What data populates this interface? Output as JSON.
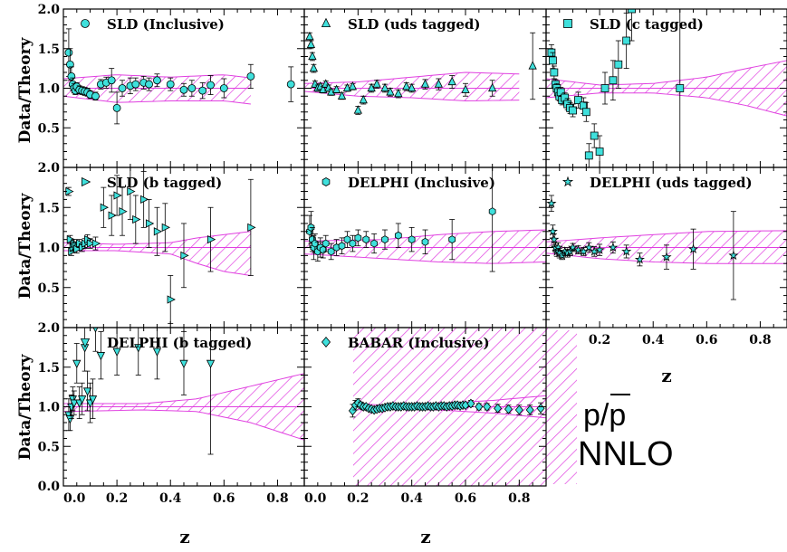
{
  "figure": {
    "ylabel": "Data/Theory",
    "xlabel": "z",
    "legend_lines": [
      "p/p",
      "NNLO"
    ],
    "legend_overbar_on": "p",
    "colors": {
      "marker_fill": "#3fe0dc",
      "band": "#e040e0",
      "axis": "#000000"
    },
    "x_ticks": [
      "0.0",
      "0.2",
      "0.4",
      "0.6",
      "0.8"
    ],
    "y_ticks": [
      "0.0",
      "0.5",
      "1.0",
      "1.5",
      "2.0"
    ]
  },
  "chart_data": [
    {
      "type": "scatter",
      "title": "SLD (Inclusive)",
      "marker": "circle",
      "xlim": [
        0,
        0.9
      ],
      "ylim": [
        0,
        2
      ],
      "band_xmax": 0.7,
      "band_lower": [
        [
          0.0,
          0.9
        ],
        [
          0.2,
          0.82
        ],
        [
          0.4,
          0.84
        ],
        [
          0.6,
          0.84
        ],
        [
          0.7,
          0.8
        ]
      ],
      "band_upper": [
        [
          0.0,
          1.12
        ],
        [
          0.2,
          1.17
        ],
        [
          0.4,
          1.14
        ],
        [
          0.6,
          1.17
        ],
        [
          0.7,
          1.13
        ]
      ],
      "x": [
        0.02,
        0.025,
        0.03,
        0.035,
        0.04,
        0.045,
        0.05,
        0.06,
        0.07,
        0.08,
        0.09,
        0.1,
        0.12,
        0.14,
        0.16,
        0.18,
        0.2,
        0.22,
        0.25,
        0.27,
        0.3,
        0.32,
        0.35,
        0.4,
        0.45,
        0.48,
        0.52,
        0.55,
        0.6,
        0.7,
        0.85
      ],
      "y": [
        1.45,
        1.3,
        1.15,
        1.05,
        1.0,
        0.97,
        1.02,
        0.98,
        0.97,
        0.96,
        0.95,
        0.92,
        0.9,
        1.05,
        1.07,
        1.1,
        0.75,
        1.0,
        1.03,
        1.05,
        1.07,
        1.05,
        1.1,
        1.05,
        0.98,
        1.0,
        0.97,
        1.04,
        1.0,
        1.15,
        1.05
      ],
      "err": [
        0.3,
        0.2,
        0.12,
        0.08,
        0.06,
        0.05,
        0.05,
        0.05,
        0.05,
        0.05,
        0.05,
        0.05,
        0.05,
        0.06,
        0.07,
        0.15,
        0.2,
        0.1,
        0.1,
        0.08,
        0.08,
        0.08,
        0.08,
        0.08,
        0.08,
        0.1,
        0.1,
        0.12,
        0.12,
        0.15,
        0.22
      ]
    },
    {
      "type": "scatter",
      "title": "SLD (uds tagged)",
      "marker": "triangle",
      "xlim": [
        0,
        0.9
      ],
      "ylim": [
        0,
        2
      ],
      "band_xmax": 0.8,
      "band_lower": [
        [
          0.0,
          0.96
        ],
        [
          0.2,
          0.9
        ],
        [
          0.4,
          0.88
        ],
        [
          0.6,
          0.84
        ],
        [
          0.8,
          0.85
        ]
      ],
      "band_upper": [
        [
          0.0,
          1.06
        ],
        [
          0.2,
          1.08
        ],
        [
          0.4,
          1.14
        ],
        [
          0.6,
          1.2
        ],
        [
          0.8,
          1.18
        ]
      ],
      "x": [
        0.02,
        0.025,
        0.03,
        0.035,
        0.04,
        0.05,
        0.06,
        0.07,
        0.08,
        0.09,
        0.1,
        0.12,
        0.14,
        0.16,
        0.18,
        0.2,
        0.22,
        0.25,
        0.27,
        0.3,
        0.32,
        0.35,
        0.38,
        0.4,
        0.45,
        0.5,
        0.55,
        0.6,
        0.7,
        0.85
      ],
      "y": [
        1.65,
        1.55,
        1.4,
        1.25,
        1.05,
        1.0,
        1.02,
        0.98,
        1.05,
        1.0,
        0.95,
        0.98,
        0.9,
        1.0,
        1.02,
        0.72,
        0.85,
        1.0,
        1.05,
        1.0,
        0.95,
        0.93,
        1.02,
        1.0,
        1.05,
        1.05,
        1.08,
        0.98,
        1.0,
        1.28
      ],
      "err": [
        0.05,
        0.05,
        0.05,
        0.05,
        0.04,
        0.04,
        0.04,
        0.04,
        0.04,
        0.04,
        0.04,
        0.04,
        0.04,
        0.04,
        0.04,
        0.05,
        0.05,
        0.05,
        0.05,
        0.05,
        0.05,
        0.05,
        0.05,
        0.05,
        0.06,
        0.07,
        0.08,
        0.08,
        0.1,
        0.42
      ]
    },
    {
      "type": "scatter",
      "title": "SLD (c tagged)",
      "marker": "square",
      "xlim": [
        0,
        0.9
      ],
      "ylim": [
        0,
        2
      ],
      "band_xmax": 0.9,
      "band_lower": [
        [
          0.0,
          0.88
        ],
        [
          0.2,
          0.94
        ],
        [
          0.4,
          0.94
        ],
        [
          0.6,
          0.88
        ],
        [
          0.75,
          0.78
        ],
        [
          0.9,
          0.65
        ]
      ],
      "band_upper": [
        [
          0.0,
          1.12
        ],
        [
          0.2,
          1.04
        ],
        [
          0.4,
          1.06
        ],
        [
          0.6,
          1.14
        ],
        [
          0.75,
          1.25
        ],
        [
          0.9,
          1.35
        ]
      ],
      "x": [
        0.02,
        0.025,
        0.03,
        0.035,
        0.04,
        0.045,
        0.05,
        0.055,
        0.06,
        0.07,
        0.08,
        0.09,
        0.1,
        0.12,
        0.14,
        0.15,
        0.16,
        0.18,
        0.2,
        0.22,
        0.25,
        0.27,
        0.3,
        0.32,
        0.5
      ],
      "y": [
        1.45,
        1.35,
        1.2,
        1.05,
        1.0,
        0.95,
        0.9,
        0.95,
        0.85,
        0.88,
        0.8,
        0.75,
        0.72,
        0.85,
        0.78,
        0.7,
        0.15,
        0.4,
        0.2,
        1.0,
        1.1,
        1.3,
        1.6,
        2.0,
        1.0
      ],
      "err": [
        0.1,
        0.1,
        0.08,
        0.06,
        0.06,
        0.06,
        0.06,
        0.06,
        0.06,
        0.06,
        0.07,
        0.07,
        0.08,
        0.1,
        0.1,
        0.12,
        0.15,
        0.15,
        0.2,
        0.2,
        0.25,
        0.3,
        0.35,
        0.4,
        1.0
      ]
    },
    {
      "type": "scatter",
      "title": "SLD (b tagged)",
      "marker": "triangle-right",
      "xlim": [
        0,
        0.9
      ],
      "ylim": [
        0,
        2
      ],
      "band_xmax": 0.7,
      "band_lower": [
        [
          0.0,
          0.96
        ],
        [
          0.2,
          0.96
        ],
        [
          0.4,
          0.92
        ],
        [
          0.5,
          0.8
        ],
        [
          0.6,
          0.7
        ],
        [
          0.7,
          0.65
        ]
      ],
      "band_upper": [
        [
          0.0,
          1.06
        ],
        [
          0.2,
          1.04
        ],
        [
          0.4,
          1.06
        ],
        [
          0.5,
          1.12
        ],
        [
          0.6,
          1.16
        ],
        [
          0.7,
          1.2
        ]
      ],
      "x": [
        0.02,
        0.025,
        0.03,
        0.035,
        0.04,
        0.045,
        0.05,
        0.06,
        0.07,
        0.08,
        0.09,
        0.1,
        0.12,
        0.15,
        0.18,
        0.2,
        0.22,
        0.25,
        0.27,
        0.3,
        0.32,
        0.35,
        0.38,
        0.4,
        0.45,
        0.55,
        0.7
      ],
      "y": [
        1.7,
        1.1,
        0.95,
        1.0,
        1.05,
        1.02,
        0.98,
        1.05,
        1.0,
        1.05,
        1.1,
        1.05,
        1.05,
        1.5,
        1.4,
        1.65,
        1.45,
        1.7,
        1.35,
        1.6,
        1.3,
        1.2,
        1.25,
        0.35,
        0.9,
        1.1,
        1.25
      ],
      "err": [
        0.05,
        0.05,
        0.05,
        0.05,
        0.05,
        0.05,
        0.05,
        0.05,
        0.05,
        0.06,
        0.06,
        0.06,
        0.08,
        0.25,
        0.25,
        0.25,
        0.3,
        0.35,
        0.3,
        0.35,
        0.3,
        0.3,
        0.3,
        0.3,
        0.4,
        0.4,
        0.6
      ]
    },
    {
      "type": "scatter",
      "title": "DELPHI (Inclusive)",
      "marker": "hexagon",
      "xlim": [
        0,
        0.9
      ],
      "ylim": [
        0,
        2
      ],
      "band_xmax": 0.9,
      "band_lower": [
        [
          0.0,
          0.92
        ],
        [
          0.3,
          0.86
        ],
        [
          0.5,
          0.82
        ],
        [
          0.7,
          0.8
        ],
        [
          0.9,
          0.82
        ]
      ],
      "band_upper": [
        [
          0.0,
          1.08
        ],
        [
          0.3,
          1.1
        ],
        [
          0.5,
          1.16
        ],
        [
          0.7,
          1.2
        ],
        [
          0.9,
          1.22
        ]
      ],
      "x": [
        0.02,
        0.025,
        0.03,
        0.035,
        0.04,
        0.05,
        0.06,
        0.07,
        0.08,
        0.1,
        0.12,
        0.14,
        0.16,
        0.18,
        0.2,
        0.23,
        0.26,
        0.3,
        0.35,
        0.4,
        0.45,
        0.55,
        0.7
      ],
      "y": [
        1.2,
        1.25,
        1.1,
        1.0,
        1.05,
        0.95,
        1.0,
        0.97,
        1.05,
        0.95,
        1.0,
        1.02,
        1.1,
        1.05,
        1.12,
        1.1,
        1.05,
        1.1,
        1.15,
        1.1,
        1.07,
        1.1,
        1.45
      ],
      "err": [
        0.2,
        0.2,
        0.15,
        0.15,
        0.12,
        0.12,
        0.12,
        0.1,
        0.1,
        0.1,
        0.1,
        0.1,
        0.1,
        0.1,
        0.1,
        0.1,
        0.12,
        0.12,
        0.15,
        0.15,
        0.15,
        0.25,
        0.75
      ]
    },
    {
      "type": "scatter",
      "title": "DELPHI (uds tagged)",
      "marker": "star",
      "xlim": [
        0,
        0.9
      ],
      "ylim": [
        0,
        2
      ],
      "band_xmax": 0.9,
      "band_lower": [
        [
          0.0,
          0.93
        ],
        [
          0.2,
          0.86
        ],
        [
          0.4,
          0.82
        ],
        [
          0.6,
          0.8
        ],
        [
          0.9,
          0.8
        ]
      ],
      "band_upper": [
        [
          0.0,
          1.07
        ],
        [
          0.2,
          1.12
        ],
        [
          0.4,
          1.16
        ],
        [
          0.6,
          1.2
        ],
        [
          0.9,
          1.21
        ]
      ],
      "x": [
        0.02,
        0.025,
        0.03,
        0.035,
        0.04,
        0.045,
        0.05,
        0.06,
        0.07,
        0.08,
        0.09,
        0.1,
        0.12,
        0.14,
        0.16,
        0.18,
        0.2,
        0.25,
        0.3,
        0.35,
        0.45,
        0.55,
        0.7
      ],
      "y": [
        1.55,
        1.2,
        1.1,
        1.0,
        0.95,
        1.0,
        0.93,
        0.9,
        0.95,
        0.93,
        0.95,
        1.0,
        0.97,
        0.95,
        1.0,
        0.95,
        0.97,
        1.0,
        0.95,
        0.85,
        0.88,
        0.98,
        0.9
      ],
      "err": [
        0.1,
        0.08,
        0.07,
        0.06,
        0.06,
        0.06,
        0.06,
        0.05,
        0.05,
        0.05,
        0.05,
        0.05,
        0.05,
        0.05,
        0.06,
        0.06,
        0.07,
        0.07,
        0.08,
        0.08,
        0.15,
        0.25,
        0.55
      ]
    },
    {
      "type": "scatter",
      "title": "DELPHI (b tagged)",
      "marker": "triangle-down",
      "xlim": [
        0,
        0.9
      ],
      "ylim": [
        0,
        2
      ],
      "band_xmax": 0.9,
      "band_lower": [
        [
          0.0,
          0.94
        ],
        [
          0.3,
          0.96
        ],
        [
          0.5,
          0.94
        ],
        [
          0.7,
          0.8
        ],
        [
          0.9,
          0.58
        ]
      ],
      "band_upper": [
        [
          0.0,
          1.04
        ],
        [
          0.3,
          1.04
        ],
        [
          0.5,
          1.1
        ],
        [
          0.7,
          1.26
        ],
        [
          0.9,
          1.42
        ]
      ],
      "x": [
        0.02,
        0.025,
        0.03,
        0.035,
        0.04,
        0.05,
        0.06,
        0.07,
        0.08,
        0.09,
        0.1,
        0.11,
        0.12,
        0.14,
        0.2,
        0.28,
        0.35,
        0.45,
        0.55
      ],
      "y": [
        0.9,
        0.85,
        1.0,
        1.1,
        1.05,
        1.55,
        1.05,
        1.1,
        1.75,
        1.2,
        1.05,
        1.1,
        2.0,
        1.65,
        1.7,
        1.75,
        1.7,
        1.55,
        1.55
      ],
      "err": [
        0.2,
        0.15,
        0.15,
        0.15,
        0.15,
        0.25,
        0.2,
        0.2,
        0.3,
        0.25,
        0.25,
        0.25,
        0.3,
        0.3,
        0.3,
        0.35,
        0.35,
        0.4,
        1.15
      ]
    },
    {
      "type": "scatter",
      "title": "BABAR (Inclusive)",
      "marker": "diamond",
      "xlim": [
        0,
        0.9
      ],
      "ylim": [
        0,
        2
      ],
      "band_xmax": 0.9,
      "band_lower": [
        [
          0.18,
          0.96
        ],
        [
          0.3,
          0.98
        ],
        [
          0.5,
          0.96
        ],
        [
          0.7,
          0.92
        ],
        [
          0.9,
          0.86
        ]
      ],
      "band_upper": [
        [
          0.18,
          1.04
        ],
        [
          0.3,
          1.02
        ],
        [
          0.5,
          1.04
        ],
        [
          0.7,
          1.08
        ],
        [
          0.9,
          1.14
        ]
      ],
      "x": [
        0.18,
        0.19,
        0.2,
        0.21,
        0.22,
        0.23,
        0.24,
        0.25,
        0.26,
        0.27,
        0.28,
        0.29,
        0.3,
        0.31,
        0.32,
        0.33,
        0.34,
        0.35,
        0.36,
        0.37,
        0.38,
        0.39,
        0.4,
        0.41,
        0.42,
        0.43,
        0.44,
        0.45,
        0.46,
        0.47,
        0.48,
        0.49,
        0.5,
        0.51,
        0.52,
        0.53,
        0.54,
        0.55,
        0.56,
        0.57,
        0.58,
        0.59,
        0.6,
        0.62,
        0.65,
        0.68,
        0.72,
        0.76,
        0.8,
        0.84,
        0.88
      ],
      "y": [
        0.95,
        1.02,
        1.05,
        1.02,
        1.0,
        1.0,
        0.98,
        0.97,
        0.96,
        0.97,
        0.98,
        0.98,
        0.99,
        1.0,
        1.0,
        1.01,
        1.0,
        1.0,
        1.0,
        1.01,
        1.0,
        1.0,
        1.0,
        1.0,
        1.01,
        1.0,
        1.0,
        1.0,
        1.01,
        1.0,
        1.0,
        1.01,
        1.0,
        1.01,
        1.01,
        1.0,
        1.01,
        1.01,
        1.02,
        1.02,
        1.01,
        1.02,
        1.02,
        1.04,
        1.0,
        1.0,
        0.98,
        0.97,
        0.96,
        0.96,
        0.98
      ],
      "err": [
        0.08,
        0.06,
        0.05,
        0.04,
        0.04,
        0.03,
        0.03,
        0.03,
        0.03,
        0.03,
        0.03,
        0.03,
        0.03,
        0.03,
        0.03,
        0.03,
        0.03,
        0.03,
        0.03,
        0.03,
        0.03,
        0.03,
        0.03,
        0.03,
        0.03,
        0.03,
        0.03,
        0.03,
        0.03,
        0.03,
        0.03,
        0.03,
        0.03,
        0.03,
        0.03,
        0.03,
        0.03,
        0.03,
        0.03,
        0.03,
        0.03,
        0.03,
        0.03,
        0.04,
        0.04,
        0.04,
        0.05,
        0.05,
        0.06,
        0.06,
        0.07
      ]
    }
  ]
}
